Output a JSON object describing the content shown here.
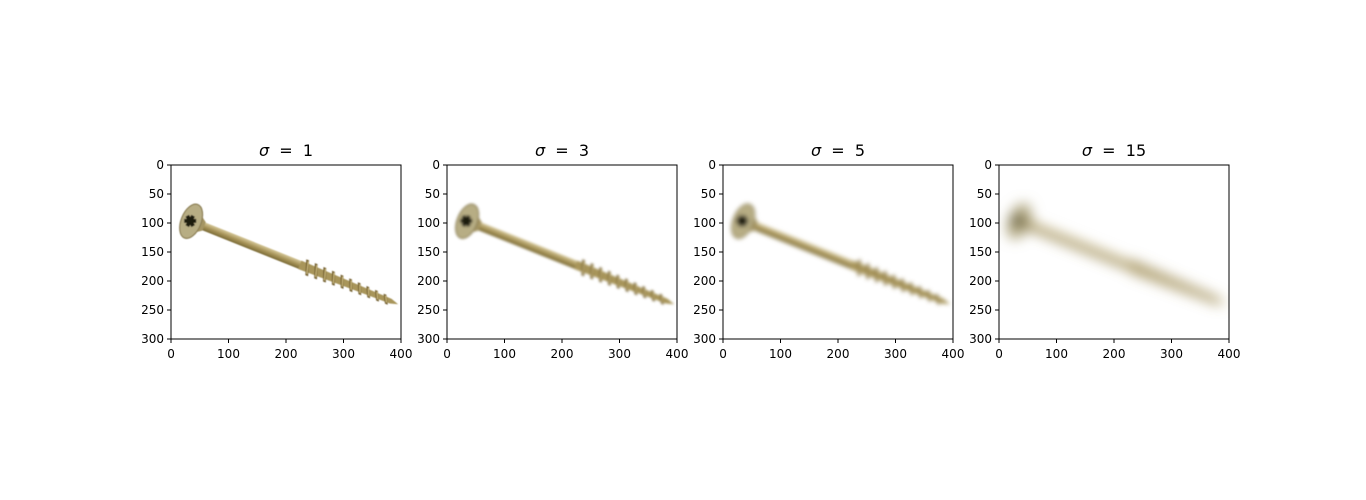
{
  "figure": {
    "panels": [
      {
        "symbol": "σ",
        "value": "1",
        "blur_sigma": 1
      },
      {
        "symbol": "σ",
        "value": "3",
        "blur_sigma": 3
      },
      {
        "symbol": "σ",
        "value": "5",
        "blur_sigma": 5
      },
      {
        "symbol": "σ",
        "value": "15",
        "blur_sigma": 15
      }
    ],
    "x_ticks": [
      "0",
      "100",
      "200",
      "300",
      "400"
    ],
    "y_ticks": [
      "0",
      "50",
      "100",
      "150",
      "200",
      "250",
      "300"
    ],
    "x_tick_values": [
      0,
      100,
      200,
      300,
      400
    ],
    "y_tick_values": [
      0,
      50,
      100,
      150,
      200,
      250,
      300
    ],
    "x_range": [
      0,
      400
    ],
    "y_range": [
      0,
      300
    ],
    "image_subject": "screw",
    "colors": {
      "screw_head": "#b7ad84",
      "screw_body": "#a8955a",
      "screw_thread": "#6e5a2a",
      "recess": "#1f1a0e",
      "axis": "#000000",
      "background": "#ffffff"
    }
  }
}
